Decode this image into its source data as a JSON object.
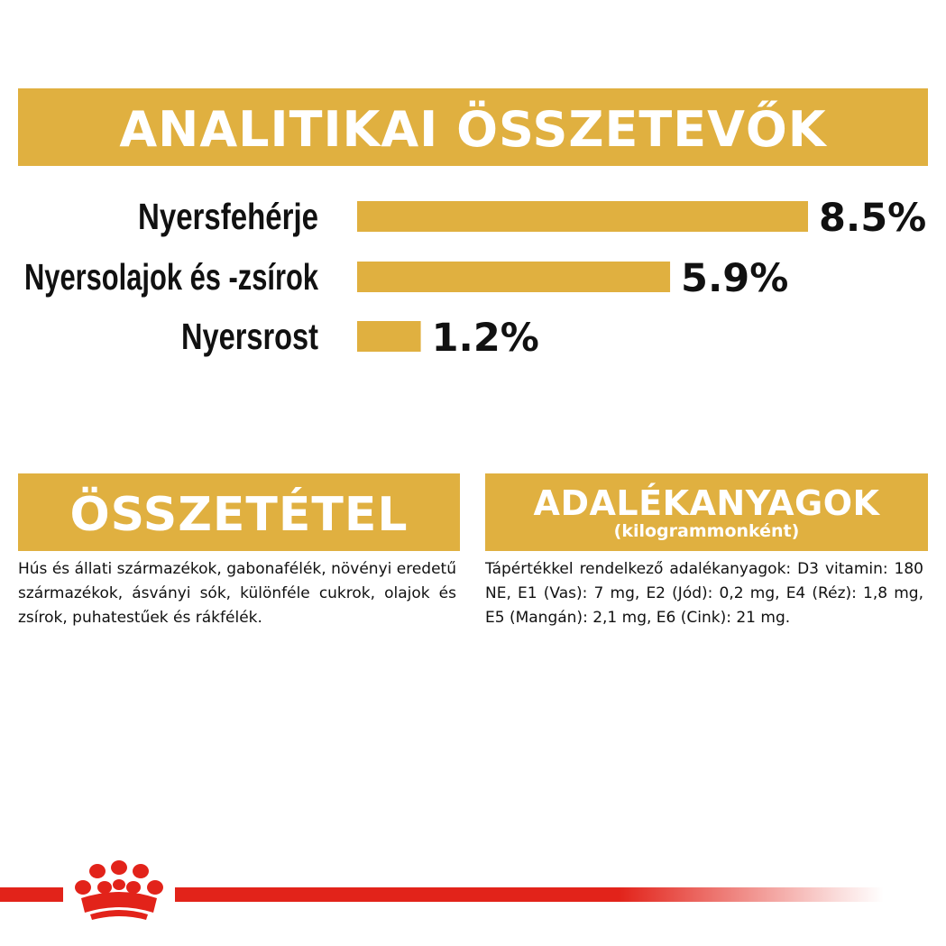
{
  "header": {
    "title": "ANALITIKAI ÖSSZETEVŐK"
  },
  "chart_data": {
    "type": "bar",
    "orientation": "horizontal",
    "categories": [
      "Nyersfehérje",
      "Nyersolajok és -zsírok",
      "Nyersrost"
    ],
    "values": [
      8.5,
      5.9,
      1.2
    ],
    "value_labels": [
      "8.5%",
      "5.9%",
      "1.2%"
    ],
    "unit": "%",
    "bar_color": "#e0b040"
  },
  "composition": {
    "title": "ÖSSZETÉTEL",
    "text": "Hús és állati származékok, gabonafélék, növényi eredetű származékok, ásványi sók, különféle cukrok, olajok és zsírok, puhatestűek és rákfélék."
  },
  "additives": {
    "title": "ADALÉKANYAGOK",
    "subtitle": "(kilogrammonként)",
    "text": "Tápértékkel rendelkező adalékanyagok: D3 vitamin: 180 NE, E1 (Vas): 7 mg, E2 (Jód): 0,2 mg, E4 (Réz): 1,8 mg, E5 (Mangán): 2,1 mg, E6 (Cink): 21 mg."
  },
  "colors": {
    "accent": "#e0b040",
    "brand_red": "#e2231a",
    "text": "#111111"
  },
  "footer": {
    "logo_icon": "crown-icon"
  }
}
